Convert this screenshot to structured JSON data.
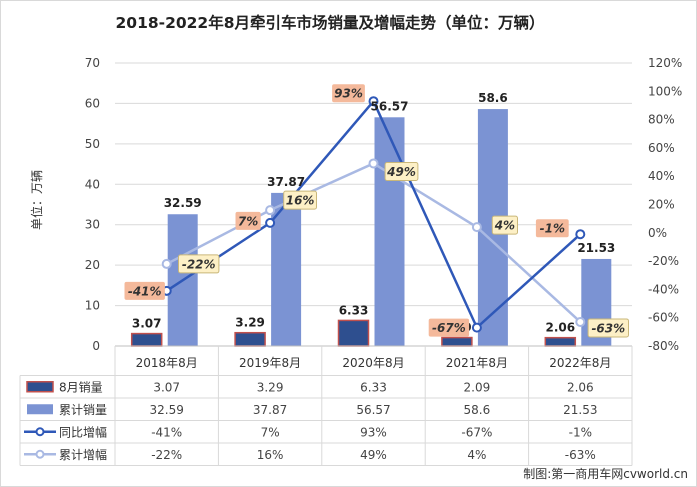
{
  "chart_data": {
    "type": "bar-line-combo",
    "title": "2018-2022年8月牵引车市场销量及增幅走势（单位：万辆）",
    "ylabel": "单位：万辆",
    "ylim": [
      0,
      70
    ],
    "yticks": [
      "0",
      "10",
      "20",
      "30",
      "40",
      "50",
      "60",
      "70"
    ],
    "y2lim": [
      -80,
      120
    ],
    "y2ticks": [
      "-80%",
      "-60%",
      "-40%",
      "-20%",
      "0%",
      "20%",
      "40%",
      "60%",
      "80%",
      "100%",
      "120%"
    ],
    "categories": [
      "2018年8月",
      "2019年8月",
      "2020年8月",
      "2021年8月",
      "2022年8月"
    ],
    "series": [
      {
        "name": "8月销量",
        "kind": "bar",
        "axis": "left",
        "color": "#2e4f8f",
        "edge": "#c0504d",
        "values": [
          3.07,
          3.29,
          6.33,
          2.09,
          2.06
        ],
        "labels": [
          "3.07",
          "3.29",
          "6.33",
          "2.09",
          "2.06"
        ]
      },
      {
        "name": "累计销量",
        "kind": "bar",
        "axis": "left",
        "color": "#7b93d3",
        "values": [
          32.59,
          37.87,
          56.57,
          58.6,
          21.53
        ],
        "labels": [
          "32.59",
          "37.87",
          "56.57",
          "58.6",
          "21.53"
        ]
      },
      {
        "name": "同比增幅",
        "kind": "line",
        "axis": "right",
        "color": "#2f58b8",
        "values": [
          -41,
          7,
          93,
          -67,
          -1
        ],
        "labels": [
          "-41%",
          "7%",
          "93%",
          "-67%",
          "-1%"
        ]
      },
      {
        "name": "累计增幅",
        "kind": "line",
        "axis": "right",
        "color": "#a9b9e3",
        "values": [
          -22,
          16,
          49,
          4,
          -63
        ],
        "labels": [
          "-22%",
          "16%",
          "49%",
          "4%",
          "-63%"
        ]
      }
    ],
    "grid": true,
    "legend": "bottom-table"
  },
  "source_note": "制图:第一商用车网cvworld.cn"
}
